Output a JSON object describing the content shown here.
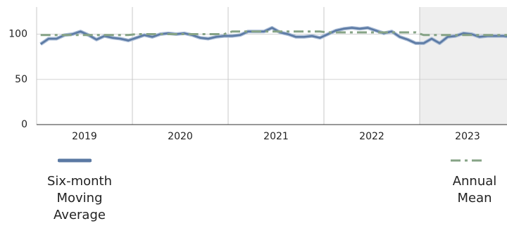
{
  "chart_data": {
    "type": "line",
    "categories": [
      "2019",
      null,
      null,
      null,
      null,
      null,
      null,
      null,
      null,
      null,
      null,
      null,
      "2020",
      null,
      null,
      null,
      null,
      null,
      null,
      null,
      null,
      null,
      null,
      null,
      "2021",
      null,
      null,
      null,
      null,
      null,
      null,
      null,
      null,
      null,
      null,
      null,
      "2022",
      null,
      null,
      null,
      null,
      null,
      null,
      null,
      null,
      null,
      null,
      null,
      "2023",
      null,
      null,
      null,
      null,
      null,
      null,
      null,
      null,
      null,
      null,
      null
    ],
    "series": [
      {
        "name": "Six-month Moving Average",
        "color": "#5b79a3",
        "style": "solid",
        "values": [
          89,
          95,
          95,
          99,
          100,
          103,
          99,
          94,
          98,
          96,
          95,
          93,
          96,
          99,
          97,
          100,
          101,
          100,
          101,
          99,
          96,
          95,
          97,
          98,
          98,
          99,
          103,
          103,
          103,
          107,
          102,
          100,
          97,
          97,
          98,
          96,
          100,
          104,
          106,
          107,
          106,
          107,
          104,
          101,
          103,
          97,
          94,
          90,
          90,
          95,
          90,
          97,
          98,
          101,
          100,
          97,
          98,
          98,
          98,
          97
        ]
      },
      {
        "name": "Annual Mean",
        "color": "#86a386",
        "style": "dashdot",
        "values": [
          99,
          99,
          99,
          99,
          99,
          99,
          99,
          99,
          99,
          99,
          99,
          99,
          100,
          100,
          100,
          100,
          100,
          100,
          100,
          100,
          100,
          100,
          100,
          100,
          103,
          103,
          103,
          103,
          103,
          103,
          103,
          103,
          103,
          103,
          103,
          103,
          102,
          102,
          102,
          102,
          102,
          102,
          102,
          102,
          102,
          102,
          102,
          102,
          99,
          99,
          99,
          99,
          99,
          99,
          99,
          99,
          99,
          99,
          99,
          99
        ]
      }
    ],
    "ylim": [
      0,
      130
    ],
    "yticks": [
      0,
      50,
      100
    ],
    "grid": true
  }
}
